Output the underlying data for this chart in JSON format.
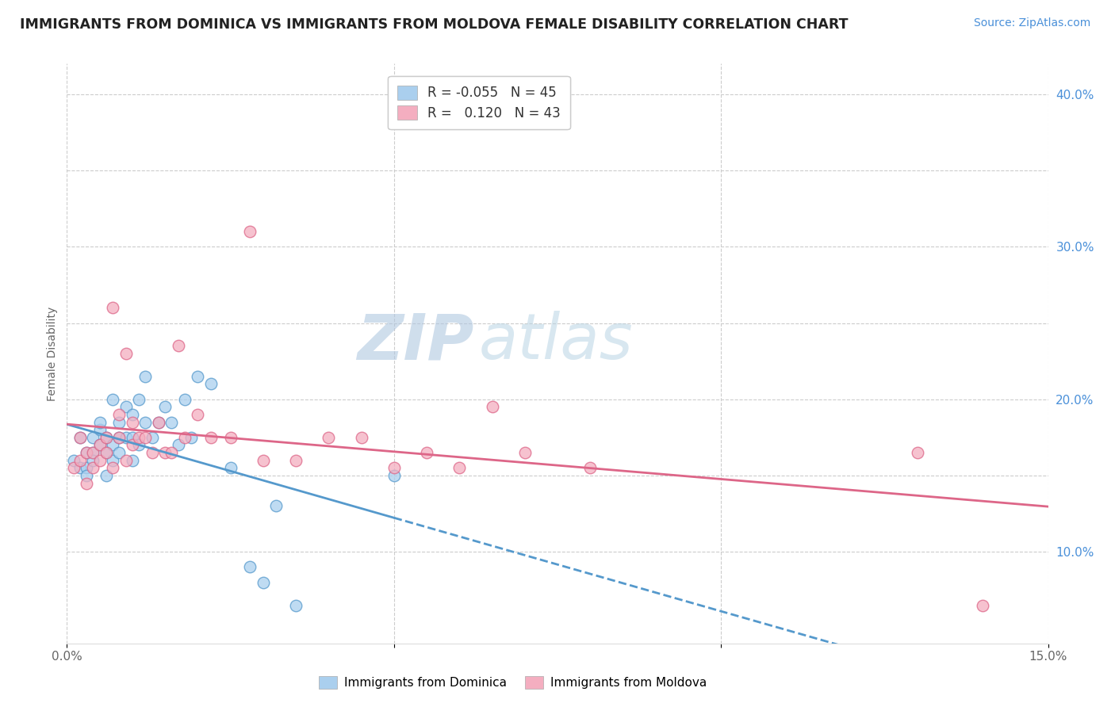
{
  "title": "IMMIGRANTS FROM DOMINICA VS IMMIGRANTS FROM MOLDOVA FEMALE DISABILITY CORRELATION CHART",
  "source": "Source: ZipAtlas.com",
  "ylabel": "Female Disability",
  "xlim": [
    0.0,
    0.15
  ],
  "ylim": [
    0.04,
    0.42
  ],
  "x_ticks": [
    0.0,
    0.05,
    0.1,
    0.15
  ],
  "x_ticklabels": [
    "0.0%",
    "",
    "",
    "15.0%"
  ],
  "y_ticks_right": [
    0.1,
    0.15,
    0.2,
    0.25,
    0.3,
    0.35,
    0.4
  ],
  "y_ticklabels_right": [
    "10.0%",
    "",
    "20.0%",
    "",
    "30.0%",
    "",
    "40.0%"
  ],
  "series1_name": "Immigrants from Dominica",
  "series1_color": "#aacfee",
  "series1_R": "-0.055",
  "series1_N": "45",
  "series2_name": "Immigrants from Moldova",
  "series2_color": "#f4aec0",
  "series2_R": "0.120",
  "series2_N": "43",
  "trend1_color": "#5599cc",
  "trend2_color": "#dd6688",
  "watermark": "ZIPatlas",
  "watermark_color_zip": "#b8cfe8",
  "watermark_color_atlas": "#c8dde8",
  "dominica_x": [
    0.001,
    0.002,
    0.002,
    0.003,
    0.003,
    0.003,
    0.004,
    0.004,
    0.004,
    0.005,
    0.005,
    0.005,
    0.006,
    0.006,
    0.006,
    0.007,
    0.007,
    0.007,
    0.008,
    0.008,
    0.008,
    0.009,
    0.009,
    0.01,
    0.01,
    0.01,
    0.011,
    0.011,
    0.012,
    0.012,
    0.013,
    0.014,
    0.015,
    0.016,
    0.017,
    0.018,
    0.019,
    0.02,
    0.022,
    0.025,
    0.028,
    0.03,
    0.032,
    0.035,
    0.05
  ],
  "dominica_y": [
    0.16,
    0.175,
    0.155,
    0.155,
    0.165,
    0.15,
    0.165,
    0.175,
    0.16,
    0.17,
    0.18,
    0.185,
    0.15,
    0.165,
    0.175,
    0.17,
    0.16,
    0.2,
    0.175,
    0.185,
    0.165,
    0.175,
    0.195,
    0.16,
    0.175,
    0.19,
    0.17,
    0.2,
    0.185,
    0.215,
    0.175,
    0.185,
    0.195,
    0.185,
    0.17,
    0.2,
    0.175,
    0.215,
    0.21,
    0.155,
    0.09,
    0.08,
    0.13,
    0.065,
    0.15
  ],
  "moldova_x": [
    0.001,
    0.002,
    0.002,
    0.003,
    0.003,
    0.004,
    0.004,
    0.005,
    0.005,
    0.006,
    0.006,
    0.007,
    0.007,
    0.008,
    0.008,
    0.009,
    0.009,
    0.01,
    0.01,
    0.011,
    0.012,
    0.013,
    0.014,
    0.015,
    0.016,
    0.017,
    0.018,
    0.02,
    0.022,
    0.025,
    0.028,
    0.03,
    0.035,
    0.04,
    0.045,
    0.05,
    0.055,
    0.06,
    0.065,
    0.07,
    0.08,
    0.13,
    0.14
  ],
  "moldova_y": [
    0.155,
    0.16,
    0.175,
    0.165,
    0.145,
    0.155,
    0.165,
    0.17,
    0.16,
    0.175,
    0.165,
    0.155,
    0.26,
    0.175,
    0.19,
    0.16,
    0.23,
    0.17,
    0.185,
    0.175,
    0.175,
    0.165,
    0.185,
    0.165,
    0.165,
    0.235,
    0.175,
    0.19,
    0.175,
    0.175,
    0.31,
    0.16,
    0.16,
    0.175,
    0.175,
    0.155,
    0.165,
    0.155,
    0.195,
    0.165,
    0.155,
    0.165,
    0.065
  ]
}
